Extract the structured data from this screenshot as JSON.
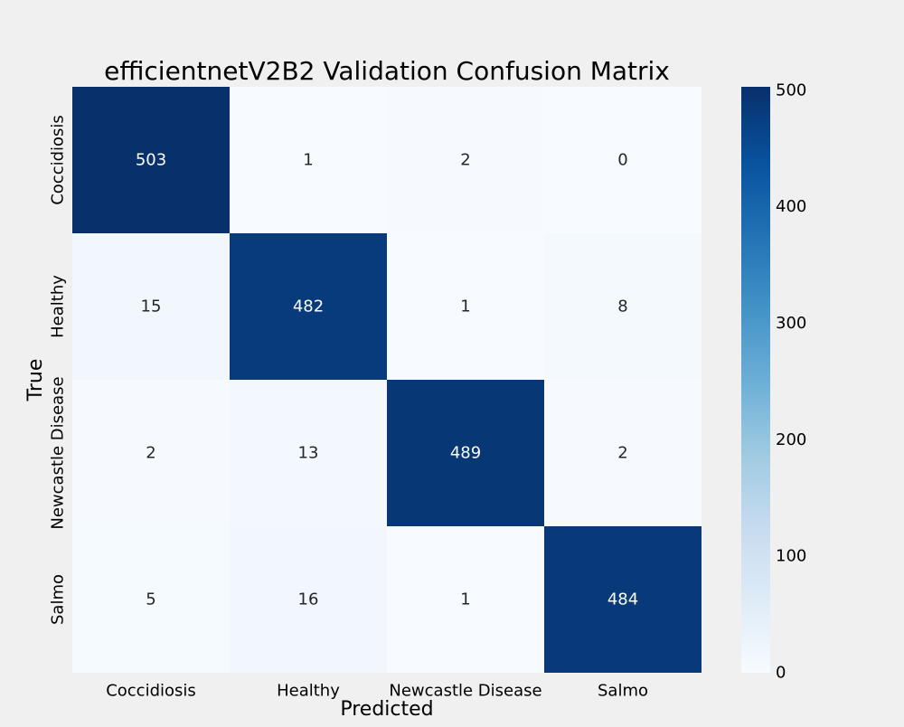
{
  "chart_data": {
    "type": "heatmap",
    "title": "efficientnetV2B2 Validation Confusion Matrix",
    "xlabel": "Predicted",
    "ylabel": "True",
    "x_categories": [
      "Coccidiosis",
      "Healthy",
      "Newcastle Disease",
      "Salmo"
    ],
    "y_categories": [
      "Coccidiosis",
      "Healthy",
      "Newcastle Disease",
      "Salmo"
    ],
    "values": [
      [
        503,
        1,
        2,
        0
      ],
      [
        15,
        482,
        1,
        8
      ],
      [
        2,
        13,
        489,
        2
      ],
      [
        5,
        16,
        1,
        484
      ]
    ],
    "colorbar": {
      "range": [
        0,
        503
      ],
      "ticks": [
        0,
        100,
        200,
        300,
        400,
        500
      ],
      "tick_labels": [
        "0",
        "100",
        "200",
        "300",
        "400",
        "500"
      ]
    },
    "colormap": "Blues",
    "grid": false
  }
}
